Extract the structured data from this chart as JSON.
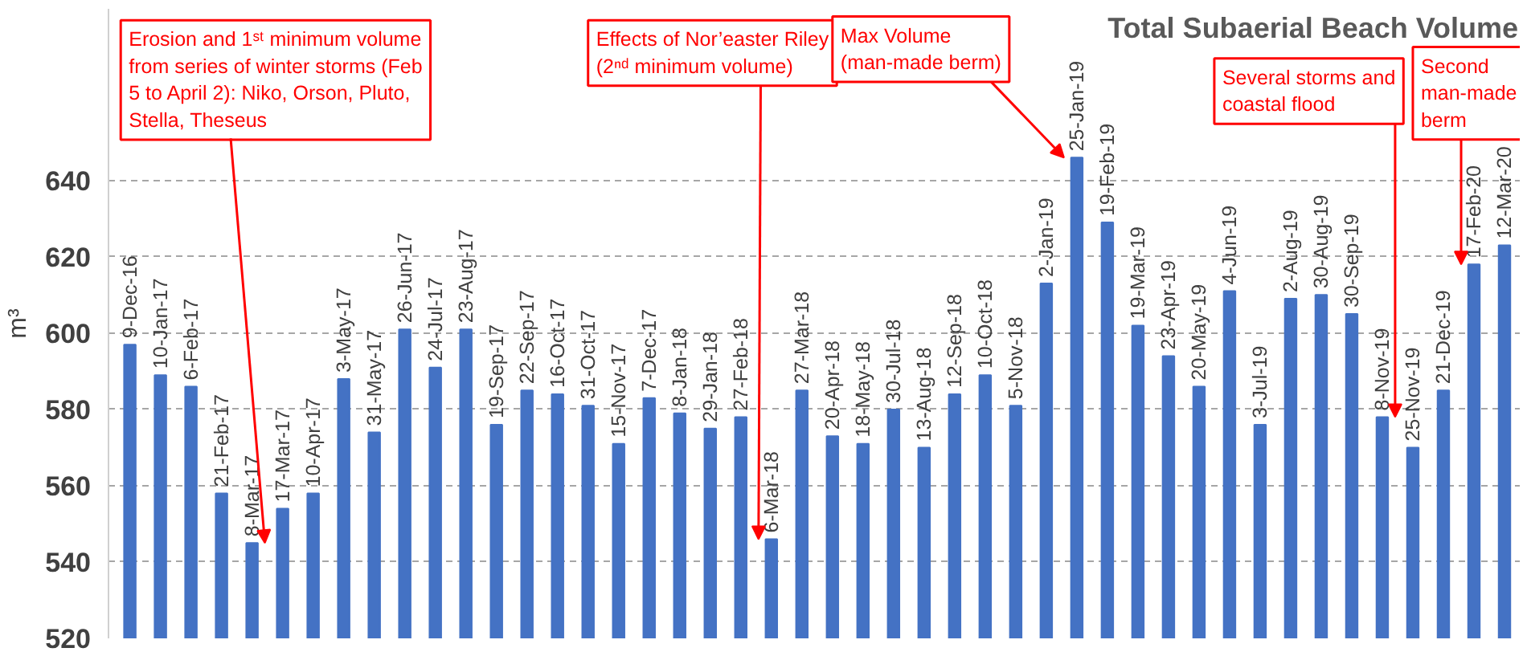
{
  "chart_data": {
    "type": "bar",
    "title": "Total Subaerial Beach Volume",
    "ylabel": "m³",
    "categories": [
      "9-Dec-16",
      "10-Jan-17",
      "6-Feb-17",
      "21-Feb-17",
      "8-Mar-17",
      "17-Mar-17",
      "10-Apr-17",
      "3-May-17",
      "31-May-17",
      "26-Jun-17",
      "24-Jul-17",
      "23-Aug-17",
      "19-Sep-17",
      "22-Sep-17",
      "16-Oct-17",
      "31-Oct-17",
      "15-Nov-17",
      "7-Dec-17",
      "8-Jan-18",
      "29-Jan-18",
      "27-Feb-18",
      "6-Mar-18",
      "27-Mar-18",
      "20-Apr-18",
      "18-May-18",
      "30-Jul-18",
      "13-Aug-18",
      "12-Sep-18",
      "10-Oct-18",
      "5-Nov-18",
      "2-Jan-19",
      "25-Jan-19",
      "19-Feb-19",
      "19-Mar-19",
      "23-Apr-19",
      "20-May-19",
      "4-Jun-19",
      "3-Jul-19",
      "2-Aug-19",
      "30-Aug-19",
      "30-Sep-19",
      "8-Nov-19",
      "25-Nov-19",
      "21-Dec-19",
      "17-Feb-20",
      "12-Mar-20"
    ],
    "values": [
      597,
      589,
      586,
      558,
      545,
      554,
      558,
      588,
      574,
      601,
      591,
      601,
      576,
      585,
      584,
      581,
      571,
      583,
      579,
      575,
      578,
      546,
      585,
      573,
      571,
      580,
      570,
      584,
      589,
      581,
      613,
      646,
      629,
      602,
      594,
      586,
      611,
      576,
      609,
      610,
      605,
      578,
      570,
      585,
      618,
      623
    ],
    "color": "#4472c4",
    "ylim": [
      520,
      685
    ],
    "yticks": [
      520,
      540,
      560,
      580,
      600,
      620,
      640
    ],
    "grid": "y",
    "annotations": [
      {
        "text": "Erosion and 1ˢᵗ minimum volume from series of winter storms (Feb 5 to April 2): Niko, Orson, Pluto, Stella, Theseus",
        "x": "8-Mar-17",
        "y": 545
      },
      {
        "text": "Effects of Nor’easter Riley (2ⁿᵈ minimum volume)",
        "x": "6-Mar-18",
        "y": 546
      },
      {
        "text": "Max Volume (man-made berm)",
        "x": "25-Jan-19",
        "y": 646
      },
      {
        "text": "Several storms and coastal flood",
        "x": "8-Nov-19",
        "y": 578
      },
      {
        "text": "Second man-made berm",
        "x": "17-Feb-20",
        "y": 618
      }
    ]
  }
}
